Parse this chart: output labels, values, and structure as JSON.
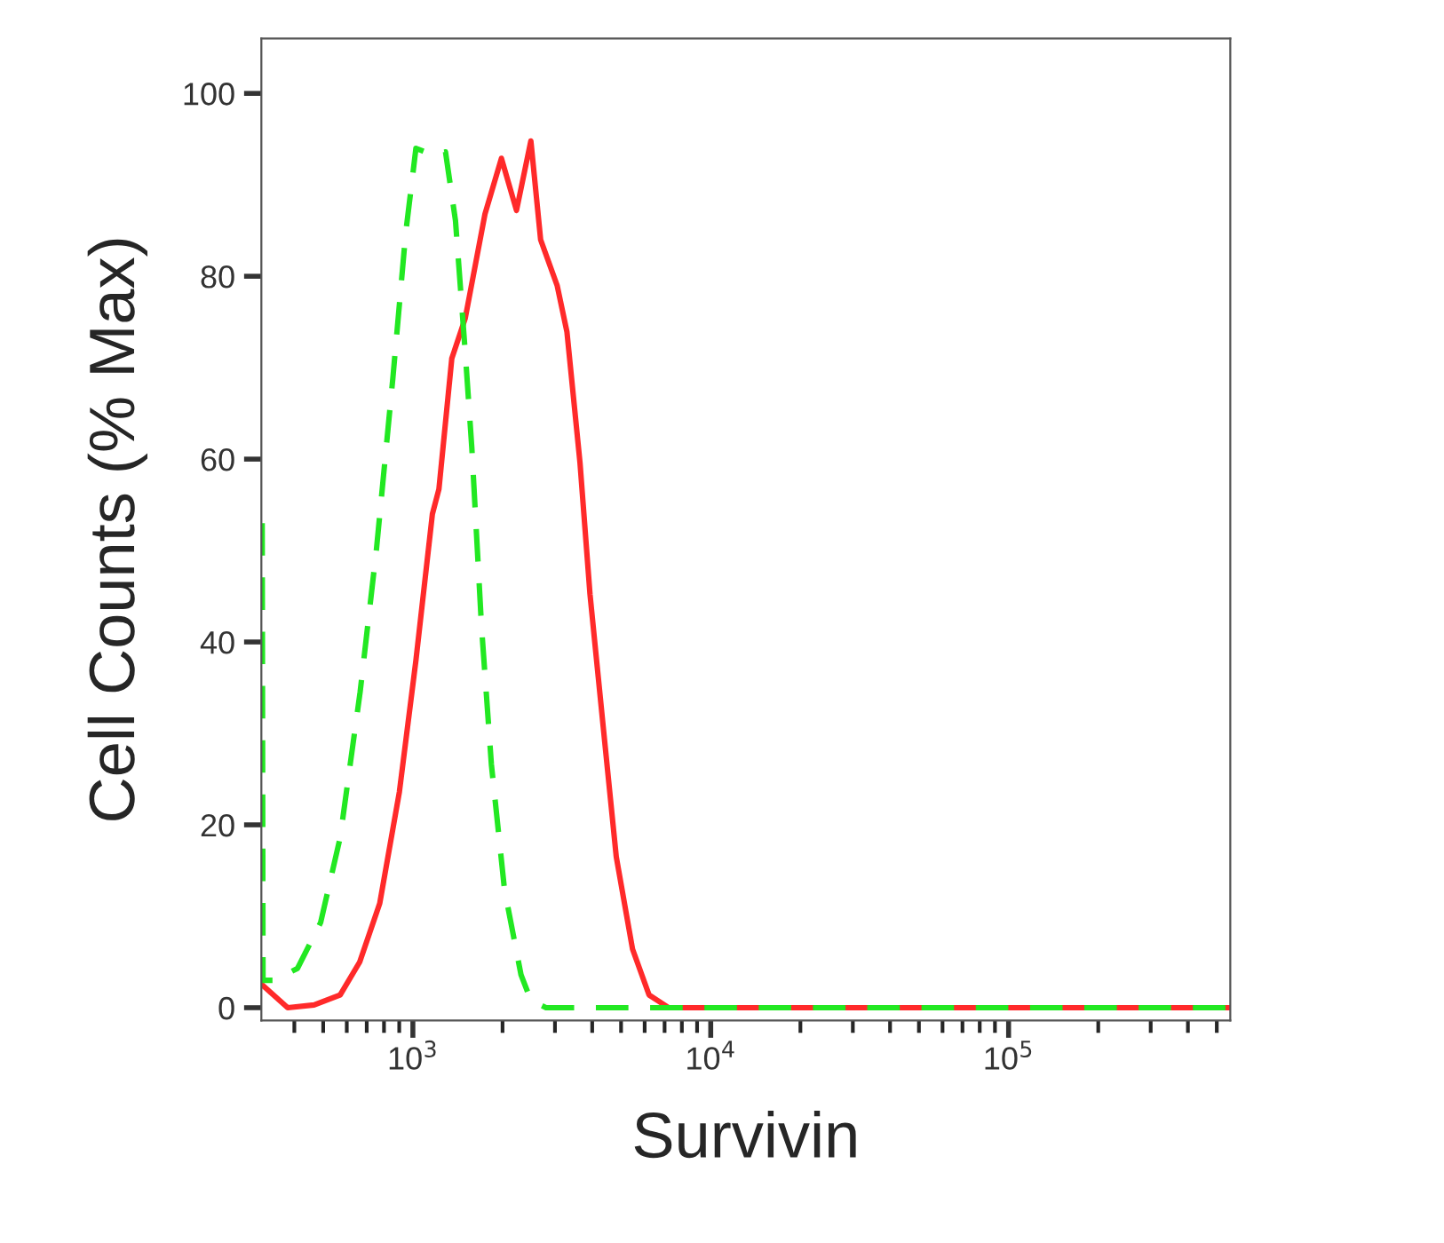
{
  "chart_data": {
    "type": "line",
    "xlabel": "Survivin",
    "ylabel": "Cell Counts (% Max)",
    "log": "x",
    "xlim": [
      310,
      555000
    ],
    "ylim": [
      -1.4,
      106
    ],
    "xticks": [
      {
        "value": 1000,
        "label": "10$^{3}$"
      },
      {
        "value": 10000,
        "label": "10$^{4}$"
      },
      {
        "value": 100000,
        "label": "10$^{5}$"
      }
    ],
    "yticks": [
      0,
      20,
      40,
      60,
      80,
      100
    ],
    "grid": false,
    "legend": false,
    "marker": "none",
    "series": [
      {
        "color": "#ff2a2a",
        "line_style": "solid",
        "x": [
          312,
          380,
          466,
          570,
          663,
          774,
          901,
          1024,
          1163,
          1223,
          1351,
          1499,
          1746,
          1983,
          2228,
          2490,
          2685,
          3050,
          3291,
          3640,
          3933,
          4353,
          4818,
          5464,
          6207,
          7226,
          10000,
          100000,
          555000
        ],
        "values": [
          2.5,
          0,
          0.3,
          1.4,
          5,
          11.4,
          23.6,
          38,
          54,
          56.7,
          71,
          75.4,
          86.8,
          92.9,
          87.2,
          94.8,
          84,
          79,
          73.9,
          59.6,
          45.2,
          30.8,
          16.5,
          6.4,
          1.4,
          0,
          0,
          0,
          0
        ]
      },
      {
        "color": "#22e822",
        "line_style": "dashed",
        "x": [
          312,
          314,
          343,
          410,
          490,
          570,
          665,
          755,
          857,
          946,
          1024,
          1163,
          1287,
          1390,
          1499,
          1577,
          1700,
          1835,
          2031,
          2307,
          2490,
          2800,
          10000,
          100000,
          555000
        ],
        "values": [
          53,
          3,
          3,
          4.3,
          9.3,
          18.6,
          34.5,
          50.2,
          68.9,
          84.7,
          94,
          93.3,
          93.6,
          86.1,
          71.7,
          61.3,
          41.7,
          26.6,
          12.9,
          3.6,
          0.8,
          0,
          0,
          0,
          0
        ]
      }
    ]
  }
}
